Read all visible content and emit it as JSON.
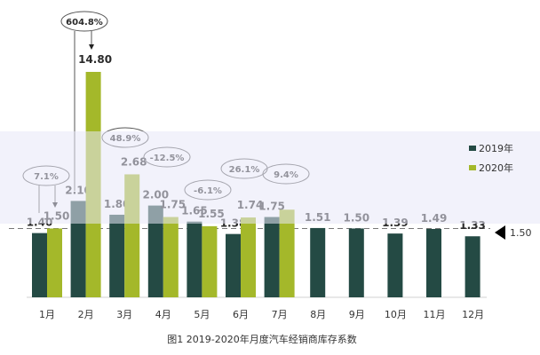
{
  "chart_data": {
    "type": "bar",
    "title": "图1  2019-2020年月度汽车经销商库存系数",
    "xlabel": "",
    "ylabel": "",
    "categories": [
      "1月",
      "2月",
      "3月",
      "4月",
      "5月",
      "6月",
      "7月",
      "8月",
      "9月",
      "10月",
      "11月",
      "12月"
    ],
    "series": [
      {
        "name": "2019年",
        "color": "#244a44",
        "values": [
          1.4,
          2.1,
          1.8,
          2.0,
          1.65,
          1.38,
          1.75,
          1.51,
          1.5,
          1.39,
          1.49,
          1.33
        ],
        "labels": [
          "1.40",
          "2.10",
          "1.80",
          "2.00",
          "1.65",
          "1.38",
          "1.75",
          "1.51",
          "1.50",
          "1.39",
          "1.49",
          "1.33"
        ]
      },
      {
        "name": "2020年",
        "color": "#a4b82a",
        "values": [
          1.5,
          14.8,
          2.68,
          1.75,
          1.55,
          1.74,
          1.91,
          null,
          null,
          null,
          null,
          null
        ],
        "labels": [
          "1.50",
          "14.80",
          "2.68",
          "1.75",
          "1.55",
          "1.74",
          "",
          "",
          "",
          "",
          "",
          ""
        ]
      }
    ],
    "yoy_annotations": [
      {
        "month": "1月",
        "text": "7.1%"
      },
      {
        "month": "2月",
        "text": "604.8%"
      },
      {
        "month": "3月",
        "text": "48.9%"
      },
      {
        "month": "4月",
        "text": "-12.5%"
      },
      {
        "month": "5月",
        "text": "-6.1%"
      },
      {
        "month": "6月",
        "text": "26.1%"
      },
      {
        "month": "7月",
        "text": "9.4%"
      }
    ],
    "reference_line": {
      "value": 1.5,
      "label": "1.50",
      "style": "dashed"
    },
    "legend": {
      "position": "upper-right",
      "entries": [
        "2019年",
        "2020年"
      ]
    },
    "grid": false,
    "ylim": [
      0,
      3.0
    ]
  },
  "legend": {
    "item_2019": "2019年",
    "item_2020": "2020年"
  },
  "reference": {
    "label": "1.50"
  },
  "caption": "图1  2019-2020年月度汽车经销商库存系数"
}
